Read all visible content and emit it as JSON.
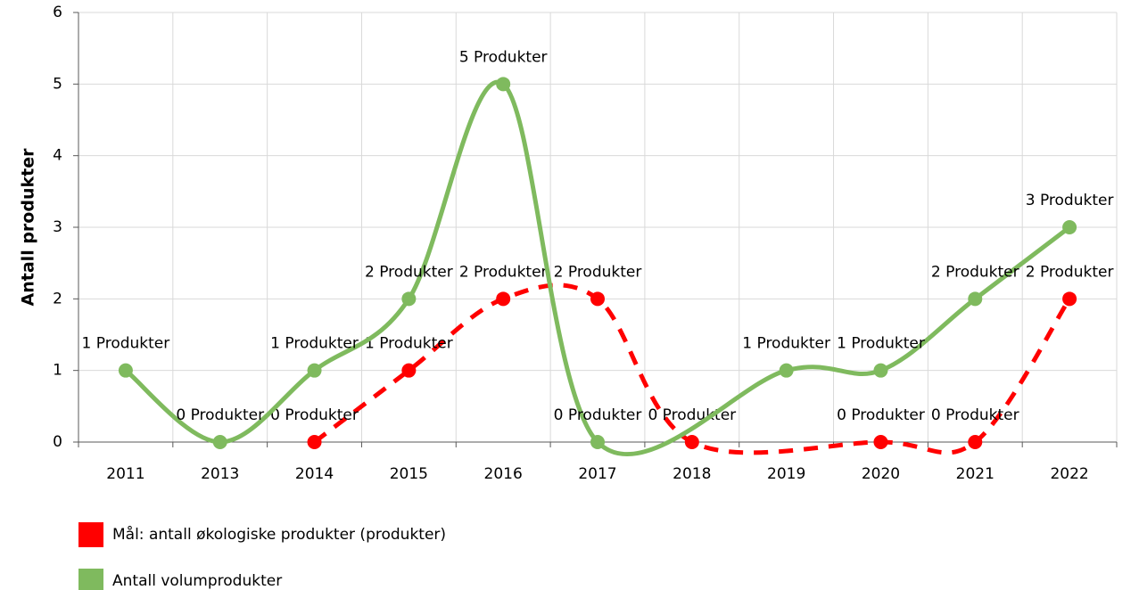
{
  "chart_data": {
    "type": "line",
    "y_label": "Antall produkter",
    "categories": [
      "2011",
      "2013",
      "2014",
      "2015",
      "2016",
      "2017",
      "2018",
      "2019",
      "2020",
      "2021",
      "2022"
    ],
    "series": [
      {
        "name": "Mål: antall økologiske produkter (produkter)",
        "color": "#ff0000",
        "dashed": true,
        "values": [
          null,
          null,
          0,
          1,
          2,
          2,
          0,
          null,
          0,
          0,
          2
        ],
        "value_labels": [
          null,
          null,
          "0 Produkter",
          "1 Produkter",
          "2 Produkter",
          "2 Produkter",
          "0 Produkter",
          null,
          "0 Produkter",
          "0 Produkter",
          "2 Produkter"
        ]
      },
      {
        "name": "Antall volumprodukter",
        "color": "#7fba5e",
        "dashed": false,
        "values": [
          1,
          0,
          1,
          2,
          5,
          0,
          null,
          1,
          1,
          2,
          3
        ],
        "value_labels": [
          "1 Produkter",
          "0 Produkter",
          "1 Produkter",
          "2 Produkter",
          "5 Produkter",
          "0 Produkter",
          null,
          "1 Produkter",
          "1 Produkter",
          "2 Produkter",
          "3 Produkter"
        ]
      }
    ],
    "ylim": [
      0,
      6
    ],
    "yticks": [
      0,
      1,
      2,
      3,
      4,
      5,
      6
    ],
    "grid": true,
    "smooth": true,
    "span_gaps": true,
    "legend": "bottom-left"
  }
}
